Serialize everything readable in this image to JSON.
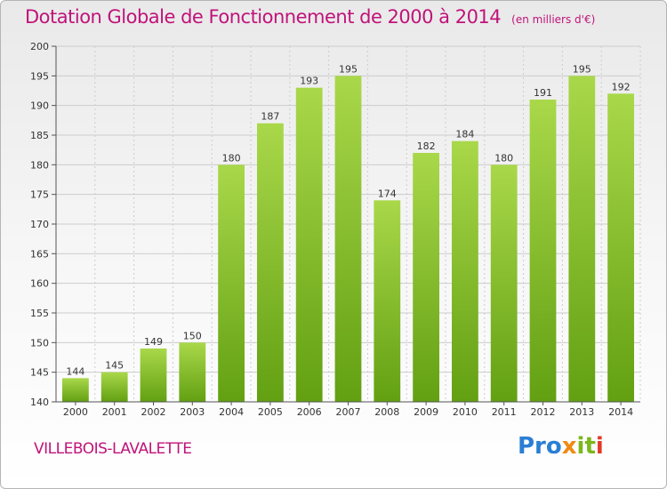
{
  "title": "Dotation Globale de Fonctionnement de 2000 à 2014",
  "subtitle": "(en milliers d'€)",
  "commune": "VILLEBOIS-LAVALETTE",
  "logo": {
    "text": "Proxiti",
    "part1": "Pro",
    "part2": "x",
    "part3": "it",
    "part4": "i"
  },
  "colors": {
    "title": "#c0137a",
    "bar_light": "#a9d84a",
    "bar_dark": "#62a012",
    "grid": "#cccccc",
    "axis": "#555555"
  },
  "chart_data": {
    "type": "bar",
    "title": "Dotation Globale de Fonctionnement de 2000 à 2014",
    "subtitle": "(en milliers d'€)",
    "xlabel": "",
    "ylabel": "",
    "categories": [
      "2000",
      "2001",
      "2002",
      "2003",
      "2004",
      "2005",
      "2006",
      "2007",
      "2008",
      "2009",
      "2010",
      "2011",
      "2012",
      "2013",
      "2014"
    ],
    "values": [
      144,
      145,
      149,
      150,
      180,
      187,
      193,
      195,
      174,
      182,
      184,
      180,
      191,
      195,
      192
    ],
    "ylim": [
      140,
      200
    ],
    "yticks": [
      140,
      145,
      150,
      155,
      160,
      165,
      170,
      175,
      180,
      185,
      190,
      195,
      200
    ],
    "grid": true,
    "legend": "none",
    "data_labels": true
  }
}
